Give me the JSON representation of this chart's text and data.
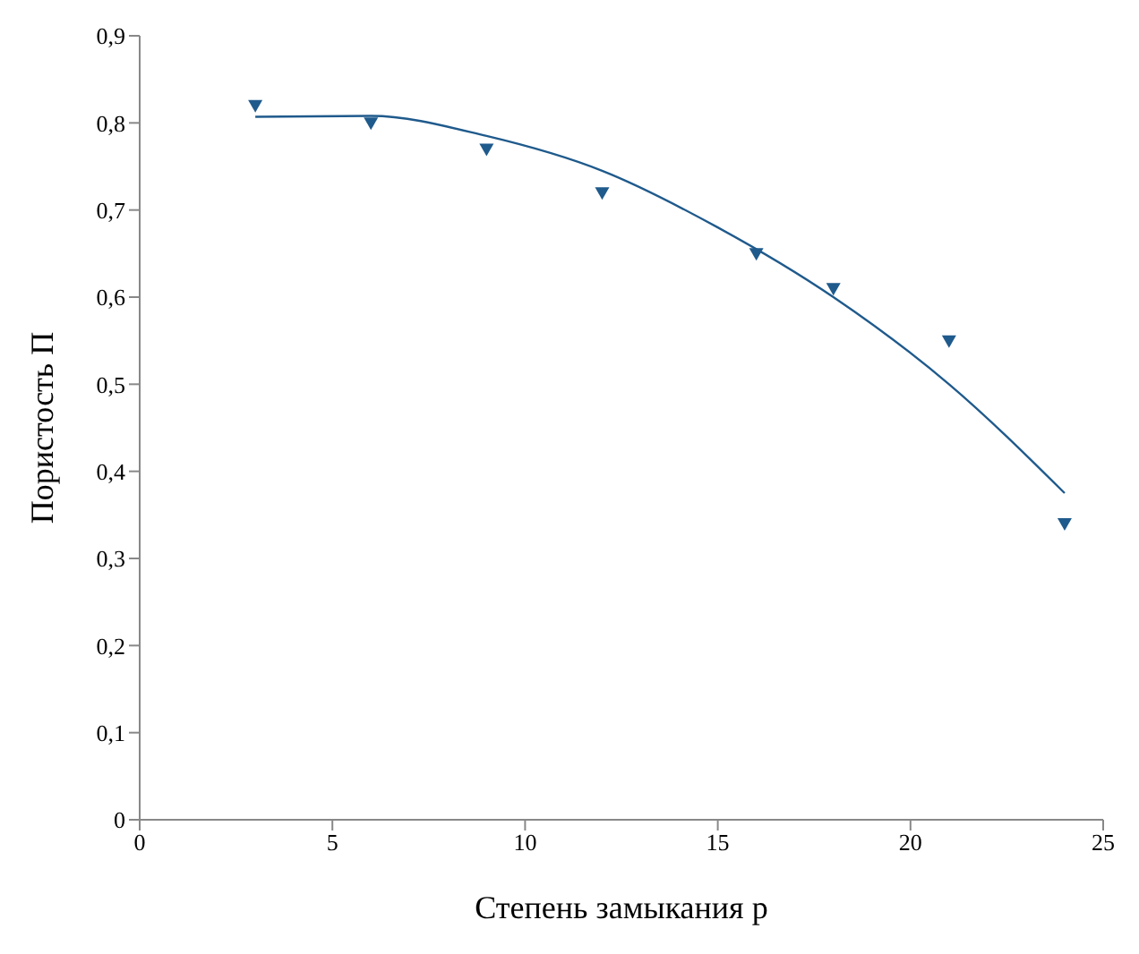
{
  "chart_data": {
    "type": "scatter",
    "xlabel": "Степень замыкания p",
    "ylabel": "Пористость П",
    "xlim": [
      0,
      25
    ],
    "ylim": [
      0,
      0.9
    ],
    "xticks": [
      0,
      5,
      10,
      15,
      20,
      25
    ],
    "yticks": [
      {
        "value": 0,
        "label": "0"
      },
      {
        "value": 0.1,
        "label": "0,1"
      },
      {
        "value": 0.2,
        "label": "0,2"
      },
      {
        "value": 0.3,
        "label": "0,3"
      },
      {
        "value": 0.4,
        "label": "0,4"
      },
      {
        "value": 0.5,
        "label": "0,5"
      },
      {
        "value": 0.6,
        "label": "0,6"
      },
      {
        "value": 0.7,
        "label": "0,7"
      },
      {
        "value": 0.8,
        "label": "0,8"
      },
      {
        "value": 0.9,
        "label": "0,9"
      }
    ],
    "grid": false,
    "legend": false,
    "series": [
      {
        "marker": "triangle",
        "color": "#1f5a8c",
        "x": [
          3,
          6,
          9,
          12,
          16,
          18,
          21,
          24
        ],
        "values": [
          0.82,
          0.8,
          0.77,
          0.72,
          0.65,
          0.61,
          0.55,
          0.34
        ]
      },
      {
        "type": "line",
        "color": "#1f5a8c",
        "line_style": "solid",
        "x": [
          3,
          6,
          9,
          12,
          15,
          18,
          21,
          24
        ],
        "values": [
          0.807,
          0.808,
          0.785,
          0.745,
          0.68,
          0.6,
          0.5,
          0.375
        ]
      }
    ]
  }
}
